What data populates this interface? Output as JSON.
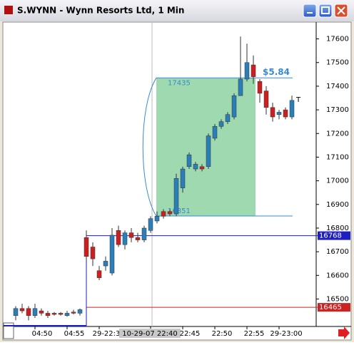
{
  "window": {
    "title": "S.WYNN - Wynn Resorts Ltd, 1 Min"
  },
  "chart_data": {
    "type": "candlestick",
    "categories": [
      null,
      null,
      null,
      "04:50",
      null,
      null,
      null,
      null,
      "04:55",
      null,
      null,
      null,
      null,
      "29-22:3",
      null,
      null,
      null,
      null,
      null,
      null,
      null,
      "10-29-07 22:40",
      null,
      null,
      null,
      null,
      "22:45",
      null,
      null,
      null,
      null,
      "22:50",
      null,
      null,
      null,
      null,
      "22:55",
      null,
      null,
      null,
      null,
      "29-23:00",
      null,
      null
    ],
    "open": [
      16430,
      16460,
      16460,
      16430,
      16450,
      16440,
      16440,
      16440,
      16430,
      16445,
      16440,
      16760,
      16720,
      16620,
      16640,
      16610,
      16790,
      16730,
      16780,
      16760,
      16750,
      16790,
      16830,
      16870,
      16870,
      16860,
      16970,
      17060,
      17050,
      17060,
      17060,
      17180,
      17230,
      17250,
      17270,
      17360,
      17430,
      17490,
      17420,
      17380,
      17310,
      17280,
      17300,
      17270
    ],
    "high": [
      16470,
      16480,
      16470,
      16480,
      16460,
      16450,
      16445,
      16445,
      16450,
      16455,
      16460,
      16790,
      16740,
      16640,
      16680,
      16800,
      16810,
      16790,
      16800,
      16780,
      16810,
      16850,
      16870,
      16880,
      16880,
      17030,
      17060,
      17120,
      17080,
      17070,
      17200,
      17240,
      17260,
      17290,
      17370,
      17610,
      17580,
      17530,
      17430,
      17400,
      17330,
      17300,
      17310,
      17360
    ],
    "low": [
      16410,
      16440,
      16410,
      16420,
      16430,
      16420,
      16430,
      16430,
      16425,
      16435,
      16430,
      16660,
      16640,
      16580,
      16620,
      16600,
      16720,
      16710,
      16740,
      16740,
      16740,
      16780,
      16820,
      16840,
      16850,
      16850,
      16950,
      17050,
      17040,
      17040,
      17050,
      17170,
      17220,
      17240,
      17260,
      17360,
      17420,
      17410,
      17330,
      17280,
      17250,
      17260,
      17260,
      17260
    ],
    "close": [
      16460,
      16450,
      16430,
      16460,
      16440,
      16430,
      16435,
      16435,
      16440,
      16440,
      16455,
      16680,
      16670,
      16590,
      16660,
      16770,
      16730,
      16780,
      16760,
      16750,
      16800,
      16840,
      16850,
      16850,
      16860,
      17010,
      17050,
      17110,
      17070,
      17050,
      17190,
      17230,
      17250,
      17280,
      17360,
      17430,
      17500,
      17440,
      17370,
      17310,
      17270,
      17290,
      17270,
      17340
    ],
    "up_color": "#2a7fb8",
    "down_color": "#cc1f1f",
    "ylim": [
      16384,
      17668
    ],
    "yticks": [
      16500,
      16600,
      16700,
      16800,
      16900,
      17000,
      17100,
      17200,
      17300,
      17400,
      17500,
      17600
    ],
    "levels": [
      {
        "value": 16768,
        "color": "#1f1fbf"
      },
      {
        "value": 16465,
        "color": "#cc2222"
      }
    ],
    "measure": {
      "top": 17435,
      "bottom": 16851,
      "change_label": "$5.84",
      "color": "#3a8ad0",
      "fill": "#9fd9b0"
    },
    "annotation": "T"
  }
}
